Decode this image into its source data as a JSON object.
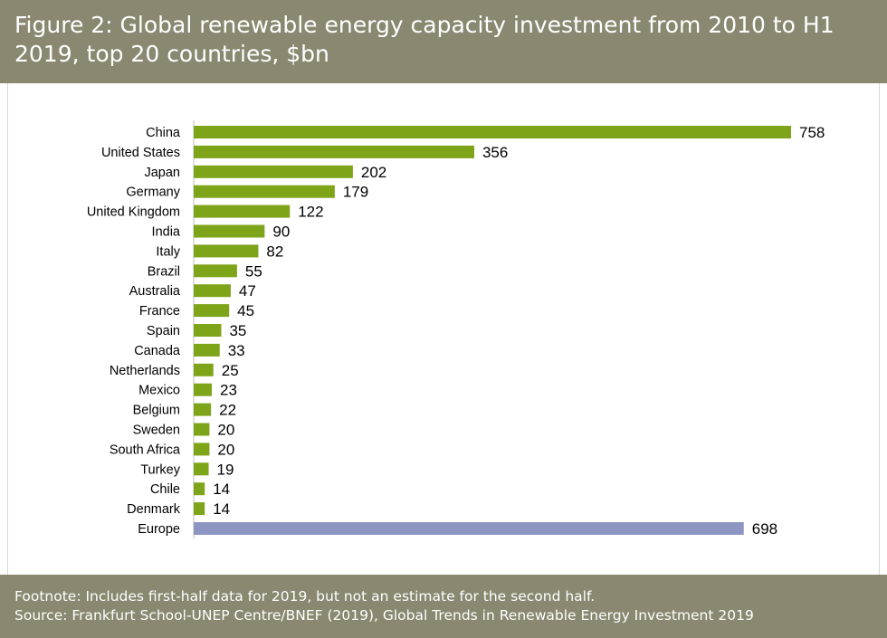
{
  "title": "Figure 2: Global renewable energy capacity investment from 2010 to H1 2019, top 20 countries, $bn",
  "footer": {
    "footnote": "Footnote: Includes first-half data for 2019, but not an estimate for the second half.",
    "source": "Source: Frankfurt School-UNEP Centre/BNEF (2019), Global Trends in Renewable Energy Investment 2019"
  },
  "colors": {
    "header_bg": "#8a8870",
    "country_bar": "#7ea41a",
    "europe_bar": "#8d96c2"
  },
  "chart_data": {
    "type": "bar",
    "orientation": "horizontal",
    "title": "Figure 2: Global renewable energy capacity investment from 2010 to H1 2019, top 20 countries, $bn",
    "xlabel": "",
    "ylabel": "",
    "xlim": [
      0,
      800
    ],
    "grid": false,
    "legend": "none",
    "categories": [
      "China",
      "United States",
      "Japan",
      "Germany",
      "United Kingdom",
      "India",
      "Italy",
      "Brazil",
      "Australia",
      "France",
      "Spain",
      "Canada",
      "Netherlands",
      "Mexico",
      "Belgium",
      "Sweden",
      "South Africa",
      "Turkey",
      "Chile",
      "Denmark",
      "Europe"
    ],
    "values": [
      758,
      356,
      202,
      179,
      122,
      90,
      82,
      55,
      47,
      45,
      35,
      33,
      25,
      23,
      22,
      20,
      20,
      19,
      14,
      14,
      698
    ],
    "highlight": [
      "Europe"
    ]
  }
}
